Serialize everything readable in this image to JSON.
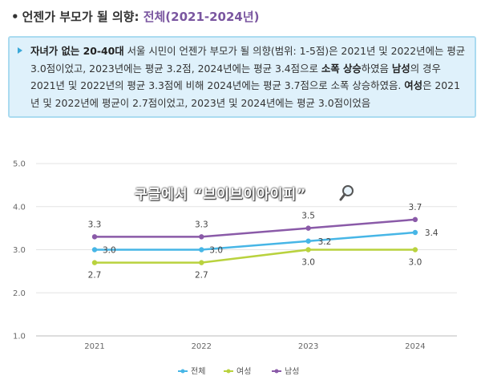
{
  "heading": {
    "bullet": "•",
    "main": "언젠가 부모가 될 의향: ",
    "highlight": "전체(2021-2024년)"
  },
  "summary": {
    "parts": [
      {
        "t": "자녀가 없는 20-40대",
        "b": true
      },
      {
        "t": " 서울 시민이 언젠가 부모가 될 의향(범위: 1-5점)은 2021년 및 2022년에는 평균 3.0점이었고, 2023년에는 평균 3.2점, 2024년에는 평균 3.4점으로 ",
        "b": false
      },
      {
        "t": "소폭 상승",
        "b": true
      },
      {
        "t": "하였음 ",
        "b": false
      },
      {
        "t": "남성",
        "b": true
      },
      {
        "t": "의 경우 2021년 및 2022년의 평균 3.3점에 비해 2024년에는 평균 3.7점으로 소폭 상승하였음. ",
        "b": false
      },
      {
        "t": "여성",
        "b": true
      },
      {
        "t": "은 2021년 및 2022년에 평균이 2.7점이었고, 2023년 및 2024년에는 평균 3.0점이었음",
        "b": false
      }
    ]
  },
  "watermark": "구글에서 “브이브이아이피”",
  "chart_data": {
    "type": "line",
    "x": [
      "2021",
      "2022",
      "2023",
      "2024"
    ],
    "ylim": [
      1.0,
      5.0
    ],
    "yticks": [
      "1.0",
      "2.0",
      "3.0",
      "4.0",
      "5.0"
    ],
    "grid": true,
    "legend_position": "bottom",
    "series": [
      {
        "name": "전체",
        "color": "#47b6e6",
        "values": [
          3.0,
          3.0,
          3.2,
          3.4
        ],
        "labels": [
          "3.0",
          "3.0",
          "3.2",
          "3.4"
        ]
      },
      {
        "name": "여성",
        "color": "#b9d23e",
        "values": [
          2.7,
          2.7,
          3.0,
          3.0
        ],
        "labels": [
          "2.7",
          "2.7",
          "3.0",
          "3.0"
        ]
      },
      {
        "name": "남성",
        "color": "#8a5aa8",
        "values": [
          3.3,
          3.3,
          3.5,
          3.7
        ],
        "labels": [
          "3.3",
          "3.3",
          "3.5",
          "3.7"
        ]
      }
    ]
  }
}
